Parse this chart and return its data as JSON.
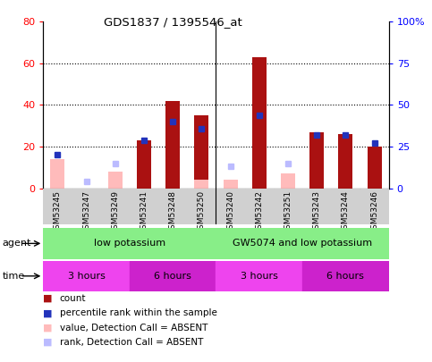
{
  "title": "GDS1837 / 1395546_at",
  "samples": [
    "GSM53245",
    "GSM53247",
    "GSM53249",
    "GSM53241",
    "GSM53248",
    "GSM53250",
    "GSM53240",
    "GSM53242",
    "GSM53251",
    "GSM53243",
    "GSM53244",
    "GSM53246"
  ],
  "count_values": [
    null,
    null,
    null,
    23,
    42,
    35,
    null,
    63,
    null,
    27,
    26,
    20
  ],
  "rank_values": [
    20,
    null,
    null,
    29,
    40,
    36,
    null,
    44,
    null,
    32,
    32,
    27
  ],
  "absent_count_values": [
    14,
    null,
    8,
    null,
    null,
    4,
    4,
    null,
    7,
    null,
    null,
    null
  ],
  "absent_rank_values": [
    null,
    4,
    15,
    null,
    null,
    null,
    13,
    null,
    15,
    null,
    null,
    null
  ],
  "ylim_left": [
    0,
    80
  ],
  "ylim_right": [
    0,
    100
  ],
  "yticks_left": [
    0,
    20,
    40,
    60,
    80
  ],
  "yticks_right": [
    0,
    25,
    50,
    75,
    100
  ],
  "ytick_labels_right": [
    "0",
    "25",
    "50",
    "75",
    "100%"
  ],
  "bar_color": "#aa1111",
  "rank_color": "#2233bb",
  "absent_count_color": "#ffbbbb",
  "absent_rank_color": "#bbbbff",
  "agent_groups": [
    {
      "label": "low potassium",
      "start": 0,
      "end": 5,
      "color": "#88ee88"
    },
    {
      "label": "GW5074 and low potassium",
      "start": 6,
      "end": 11,
      "color": "#88ee88"
    }
  ],
  "time_groups": [
    {
      "label": "3 hours",
      "start": 0,
      "end": 2,
      "color": "#ee44ee"
    },
    {
      "label": "6 hours",
      "start": 3,
      "end": 5,
      "color": "#cc22cc"
    },
    {
      "label": "3 hours",
      "start": 6,
      "end": 8,
      "color": "#ee44ee"
    },
    {
      "label": "6 hours",
      "start": 9,
      "end": 11,
      "color": "#cc22cc"
    }
  ],
  "legend_items": [
    {
      "label": "count",
      "color": "#aa1111"
    },
    {
      "label": "percentile rank within the sample",
      "color": "#2233bb"
    },
    {
      "label": "value, Detection Call = ABSENT",
      "color": "#ffbbbb"
    },
    {
      "label": "rank, Detection Call = ABSENT",
      "color": "#bbbbff"
    }
  ],
  "bar_width": 0.5,
  "group_separator": 5.5,
  "bg_color": "white"
}
